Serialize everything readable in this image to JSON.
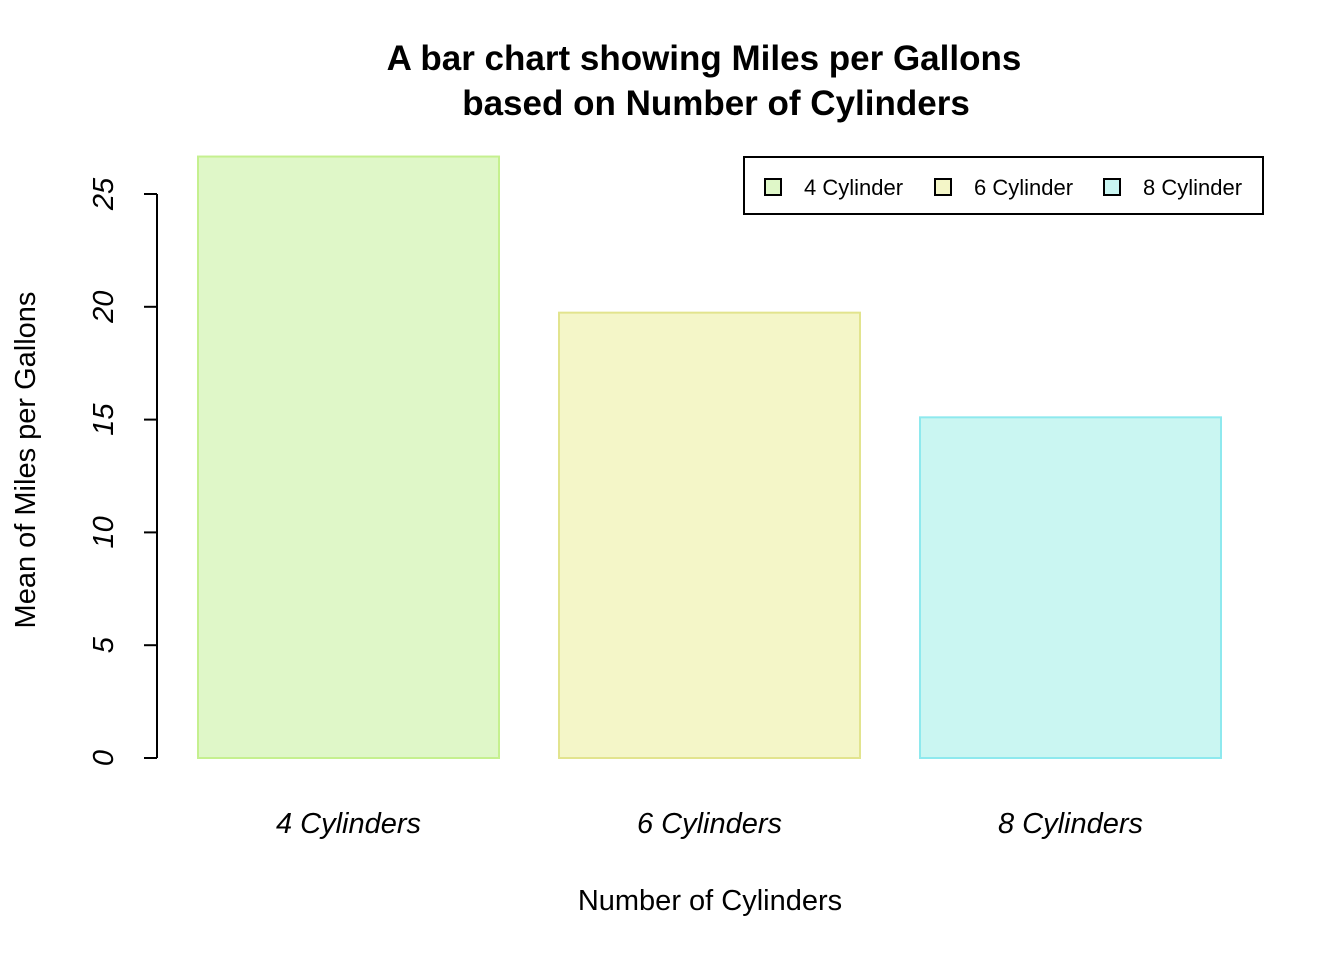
{
  "chart_data": {
    "type": "bar",
    "title_lines": [
      "A bar chart showing Miles per Gallons",
      "based on Number of Cylinders"
    ],
    "xlabel": "Number of Cylinders",
    "ylabel": "Mean of Miles per Gallons",
    "categories": [
      "4 Cylinders",
      "6 Cylinders",
      "8 Cylinders"
    ],
    "values": [
      26.66,
      19.74,
      15.1
    ],
    "bar_fills": [
      "#dff7c8",
      "#f4f6c8",
      "#caf6f2"
    ],
    "bar_borders": [
      "#c5f08f",
      "#e2e48e",
      "#8ee9ee"
    ],
    "ylim": [
      0,
      26.66
    ],
    "yticks": [
      0,
      5,
      10,
      15,
      20,
      25
    ],
    "ytick_labels": [
      "0",
      "5",
      "10",
      "15",
      "20",
      "25"
    ],
    "grid": false,
    "legend": {
      "position": "top-right",
      "entries": [
        "4 Cylinder",
        "6 Cylinder",
        "8 Cylinder"
      ]
    }
  }
}
